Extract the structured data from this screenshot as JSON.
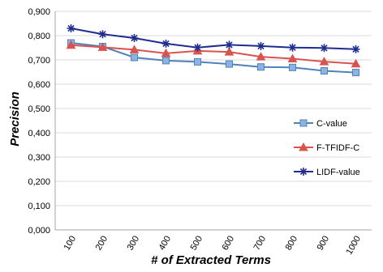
{
  "chart_data": {
    "type": "line",
    "title": "",
    "xlabel": "# of Extracted Terms",
    "ylabel": "Precision",
    "categories": [
      "100",
      "200",
      "300",
      "400",
      "500",
      "600",
      "700",
      "800",
      "900",
      "1000"
    ],
    "ylim": [
      0,
      0.9
    ],
    "ytick_values": [
      0,
      0.1,
      0.2,
      0.3,
      0.4,
      0.5,
      0.6,
      0.7,
      0.8,
      0.9
    ],
    "ytick_labels": [
      "0,000",
      "0,100",
      "0,200",
      "0,300",
      "0,400",
      "0,500",
      "0,600",
      "0,700",
      "0,800",
      "0,900"
    ],
    "grid": "horizontal",
    "legend_position": "right",
    "series": [
      {
        "name": "C-value",
        "color": "#4F81BD",
        "marker": "square",
        "values": [
          0.77,
          0.755,
          0.71,
          0.697,
          0.692,
          0.683,
          0.671,
          0.669,
          0.655,
          0.648
        ]
      },
      {
        "name": "F-TFIDF-C",
        "color": "#D9534F",
        "marker": "triangle",
        "values": [
          0.761,
          0.752,
          0.742,
          0.727,
          0.737,
          0.733,
          0.713,
          0.705,
          0.693,
          0.684
        ]
      },
      {
        "name": "LIDF-value",
        "color": "#1F2D8F",
        "marker": "asterisk",
        "values": [
          0.83,
          0.806,
          0.79,
          0.767,
          0.751,
          0.762,
          0.757,
          0.751,
          0.749,
          0.744
        ]
      }
    ]
  }
}
